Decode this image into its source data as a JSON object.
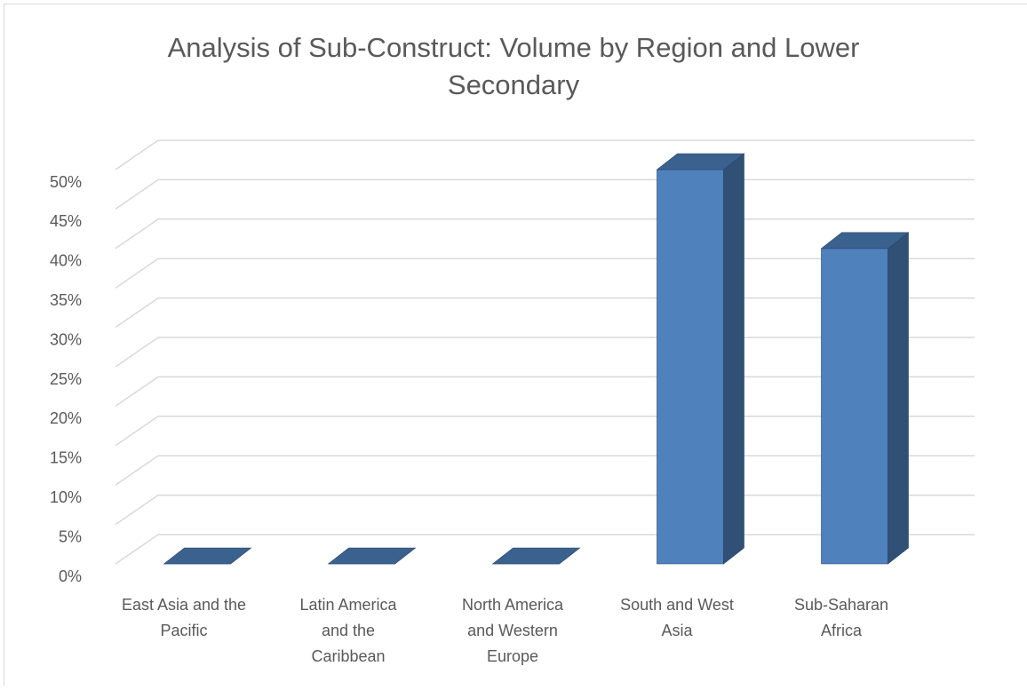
{
  "chart_data": {
    "type": "bar3d",
    "title": [
      "Analysis of Sub-Construct: Volume by Region and Lower",
      "Secondary"
    ],
    "categories": [
      [
        "East Asia and the",
        "Pacific"
      ],
      [
        "Latin America",
        "and the",
        "Caribbean"
      ],
      [
        "North America",
        "and Western",
        "Europe"
      ],
      [
        "South and West",
        "Asia"
      ],
      [
        "Sub-Saharan",
        "Africa"
      ]
    ],
    "values": [
      0,
      0,
      0,
      50,
      40
    ],
    "color": "#4f81bd",
    "ylim": [
      0,
      50
    ],
    "yticks": [
      {
        "value": 0,
        "label": "0%"
      },
      {
        "value": 5,
        "label": "5%"
      },
      {
        "value": 10,
        "label": "10%"
      },
      {
        "value": 15,
        "label": "15%"
      },
      {
        "value": 20,
        "label": "20%"
      },
      {
        "value": 25,
        "label": "25%"
      },
      {
        "value": 30,
        "label": "30%"
      },
      {
        "value": 35,
        "label": "35%"
      },
      {
        "value": 40,
        "label": "40%"
      },
      {
        "value": 45,
        "label": "45%"
      },
      {
        "value": 50,
        "label": "50%"
      }
    ],
    "grid": true
  }
}
